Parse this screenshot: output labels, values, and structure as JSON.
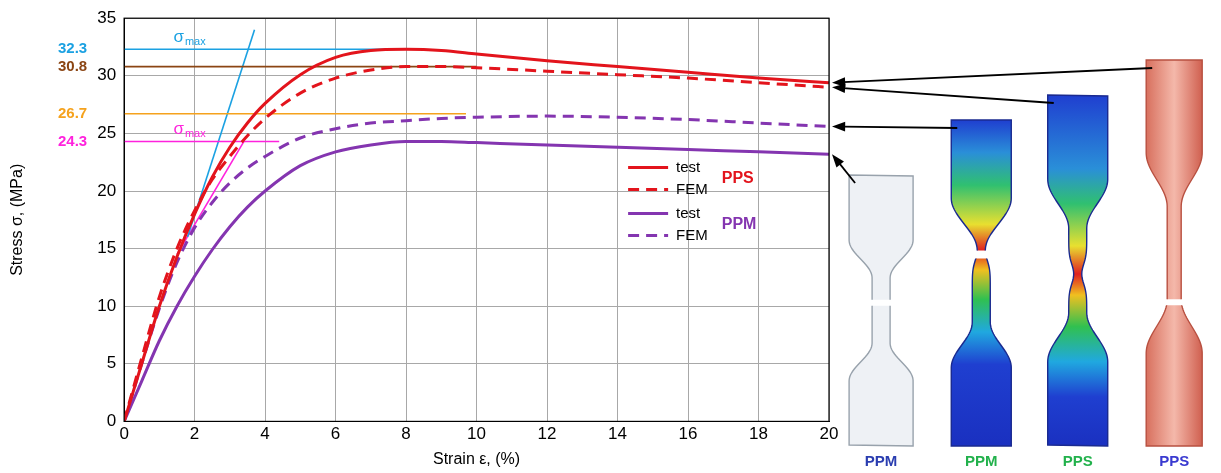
{
  "chart_data": {
    "type": "line",
    "x_label": "Strain ε, (%)",
    "y_label": "Stress σ, (MPa)",
    "xlim": [
      0,
      20
    ],
    "xticks": [
      0,
      2,
      4,
      6,
      8,
      10,
      12,
      14,
      16,
      18,
      20
    ],
    "ylim": [
      0,
      35
    ],
    "yticks": [
      0,
      5,
      10,
      15,
      20,
      25,
      30,
      35
    ],
    "grid": true,
    "legend": "right",
    "series": [
      {
        "name": "test",
        "group": "PPS",
        "color": "#e3141c",
        "line_style": "solid",
        "x": [
          0,
          0.5,
          1,
          1.5,
          2,
          2.5,
          3,
          3.5,
          4,
          5,
          6,
          7,
          8,
          9,
          10,
          12,
          14,
          16,
          18,
          20
        ],
        "values": [
          0,
          5,
          10,
          14.3,
          18,
          21.2,
          23.8,
          25.9,
          27.6,
          30.1,
          31.6,
          32.2,
          32.3,
          32.2,
          31.9,
          31.3,
          30.8,
          30.3,
          29.8,
          29.4
        ]
      },
      {
        "name": "FEM",
        "group": "PPS",
        "color": "#e3141c",
        "line_style": "dashed",
        "x": [
          0,
          0.5,
          1,
          1.5,
          2,
          2.5,
          3,
          3.5,
          4,
          5,
          6,
          7,
          8,
          9,
          10,
          12,
          14,
          16,
          18,
          20
        ],
        "values": [
          0,
          5.5,
          10.8,
          15,
          18.3,
          21,
          23,
          24.8,
          26.3,
          28.5,
          29.8,
          30.5,
          30.8,
          30.8,
          30.7,
          30.4,
          30.1,
          29.8,
          29.4,
          29.0
        ]
      },
      {
        "name": "test",
        "group": "PPM",
        "color": "#8435b0",
        "line_style": "solid",
        "x": [
          0,
          0.5,
          1,
          1.5,
          2,
          2.5,
          3,
          3.5,
          4,
          5,
          6,
          7,
          8,
          9,
          10,
          12,
          14,
          16,
          18,
          20
        ],
        "values": [
          0,
          3.5,
          7,
          10,
          12.6,
          14.9,
          16.9,
          18.6,
          20,
          22.2,
          23.4,
          24,
          24.3,
          24.3,
          24.2,
          24,
          23.8,
          23.6,
          23.4,
          23.2
        ]
      },
      {
        "name": "FEM",
        "group": "PPM",
        "color": "#8435b0",
        "line_style": "dashed",
        "x": [
          0,
          0.5,
          1,
          1.5,
          2,
          2.5,
          3,
          3.5,
          4,
          5,
          6,
          7,
          8,
          9,
          10,
          12,
          14,
          16,
          18,
          20
        ],
        "values": [
          0,
          5,
          9.8,
          13.8,
          16.8,
          19,
          20.7,
          22,
          23,
          24.6,
          25.4,
          25.9,
          26.1,
          26.3,
          26.4,
          26.5,
          26.4,
          26.2,
          25.9,
          25.6
        ]
      }
    ],
    "annotations": [
      {
        "label": "32.3",
        "value": 32.3,
        "color": "#1ba1e2",
        "x": [
          0,
          8.3
        ],
        "symbol": "σ",
        "subscript": "max"
      },
      {
        "label": "30.8",
        "value": 30.8,
        "color": "#8b4513",
        "x": [
          0,
          10
        ]
      },
      {
        "label": "26.7",
        "value": 26.7,
        "color": "#f5a21d",
        "x": [
          0,
          9.7
        ]
      },
      {
        "label": "24.3",
        "value": 24.3,
        "color": "#ff22dd",
        "x": [
          0,
          4.4
        ],
        "symbol": "σ",
        "subscript": "max"
      }
    ],
    "sloped_lines": [
      {
        "color": "#1ba1e2",
        "x": [
          1.8,
          3.7
        ],
        "values": [
          16,
          34
        ]
      },
      {
        "color": "#ff22dd",
        "x": [
          1.5,
          3.4
        ],
        "values": [
          14.5,
          24.3
        ]
      }
    ],
    "specimens": [
      {
        "label": "PPM",
        "kind": "photo",
        "color": "#2a3db0",
        "points_to": {
          "group": "PPM",
          "series": "test"
        }
      },
      {
        "label": "PPM",
        "kind": "FEM",
        "color": "#22b14c",
        "points_to": {
          "group": "PPM",
          "series": "FEM"
        }
      },
      {
        "label": "PPS",
        "kind": "FEM",
        "color": "#22b14c",
        "points_to": {
          "group": "PPS",
          "series": "FEM"
        }
      },
      {
        "label": "PPS",
        "kind": "photo",
        "color": "#3a3ad0",
        "points_to": {
          "group": "PPS",
          "series": "test"
        }
      }
    ]
  }
}
